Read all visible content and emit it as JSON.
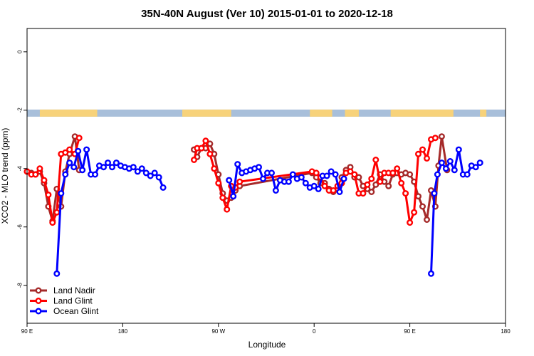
{
  "chart_data": {
    "type": "line",
    "title": "35N-40N August (Ver 10)   2015-01-01 to 2020-12-18",
    "xlabel": "Longitude",
    "ylabel": "XCO2 - MLO trend (ppm)",
    "xlim": [
      90,
      540
    ],
    "ylim": [
      -9.3,
      0.8
    ],
    "x_ticks": [
      {
        "value": 90,
        "label": "90 E"
      },
      {
        "value": 180,
        "label": "180"
      },
      {
        "value": 270,
        "label": "90 W"
      },
      {
        "value": 360,
        "label": "0"
      },
      {
        "value": 450,
        "label": "90 E"
      },
      {
        "value": 540,
        "label": "180"
      }
    ],
    "y_ticks": [
      {
        "value": 0,
        "label": "0"
      },
      {
        "value": -2,
        "label": "-2"
      },
      {
        "value": -4,
        "label": "-4"
      },
      {
        "value": -6,
        "label": "-6"
      },
      {
        "value": -8,
        "label": "-8"
      }
    ],
    "landmask": {
      "y_value": -2.1,
      "land_color": "#f7d27a",
      "ocean_color": "#a8bfda",
      "land_ranges": [
        [
          102,
          156
        ],
        [
          236,
          282
        ],
        [
          356,
          377
        ],
        [
          389,
          402
        ],
        [
          432,
          491
        ],
        [
          516,
          522
        ]
      ]
    },
    "legend_position": "bottom-left",
    "series": [
      {
        "name": "Land Nadir",
        "color": "#a52a2a",
        "x": [
          90,
          94,
          98,
          102,
          106,
          110,
          114,
          118,
          122,
          126,
          130,
          135,
          139,
          143,
          147,
          150,
          247,
          250,
          254,
          258,
          262,
          266,
          270,
          274,
          278,
          282,
          286,
          290,
          358,
          362,
          366,
          370,
          374,
          378,
          382,
          386,
          390,
          394,
          398,
          402,
          406,
          410,
          414,
          418,
          422,
          426,
          430,
          434,
          438,
          442,
          446,
          450,
          454,
          458,
          462,
          466,
          470,
          474,
          477,
          480,
          485,
          489,
          492
        ],
        "y": [
          -4.1,
          -4.15,
          -4.2,
          -4.1,
          -4.5,
          -5.3,
          -5.8,
          -4.7,
          -5.3,
          -4.1,
          -3.5,
          -2.9,
          -4.05,
          null,
          null,
          null,
          -3.35,
          -3.6,
          -3.3,
          -3.3,
          -3.15,
          -3.5,
          -4.2,
          -4.85,
          -5.1,
          -5.0,
          -4.75,
          -4.6,
          -4.15,
          -4.3,
          -4.5,
          -4.5,
          -4.7,
          -4.8,
          -4.7,
          -4.3,
          -4.05,
          -3.95,
          -4.3,
          -4.3,
          -4.6,
          -4.7,
          -4.8,
          -4.55,
          -4.2,
          -4.45,
          -4.6,
          -4.2,
          -4.15,
          -4.2,
          -4.15,
          -4.2,
          -4.45,
          -4.95,
          -5.3,
          -5.75,
          -4.75,
          -5.3,
          -3.9,
          -2.9,
          -4.05,
          null,
          null
        ]
      },
      {
        "name": "Land Glint",
        "color": "#ff0000",
        "x": [
          90,
          94,
          98,
          102,
          106,
          110,
          114,
          118,
          122,
          126,
          130,
          135,
          139,
          143,
          147,
          150,
          247,
          250,
          254,
          258,
          262,
          266,
          270,
          274,
          278,
          282,
          286,
          290,
          358,
          362,
          366,
          370,
          374,
          378,
          382,
          386,
          390,
          394,
          398,
          402,
          406,
          410,
          414,
          418,
          422,
          426,
          430,
          434,
          438,
          442,
          446,
          450,
          454,
          458,
          462,
          466,
          470,
          474,
          477,
          480,
          485,
          489,
          492
        ],
        "y": [
          -4.1,
          -4.2,
          -4.2,
          -4.0,
          -4.4,
          -4.9,
          -5.85,
          -5.5,
          -3.5,
          -3.45,
          -3.35,
          -3.5,
          -2.95,
          null,
          null,
          null,
          -3.7,
          -3.3,
          -3.3,
          -3.05,
          -3.5,
          -4.0,
          -4.5,
          -5.0,
          -5.4,
          -4.6,
          -4.65,
          -4.45,
          -4.1,
          -4.15,
          -4.3,
          -4.6,
          -4.75,
          -4.75,
          -4.6,
          -4.5,
          -4.15,
          -4.1,
          -4.2,
          -4.85,
          -4.85,
          -4.55,
          -4.35,
          -3.7,
          -4.45,
          -4.15,
          -4.15,
          -4.15,
          -4.0,
          -4.5,
          -4.85,
          -5.85,
          -5.5,
          -3.5,
          -3.35,
          -3.65,
          -3.0,
          -2.95,
          null,
          null,
          null,
          null,
          null
        ]
      },
      {
        "name": "Ocean Glint",
        "color": "#0000ff",
        "x": [
          118,
          122,
          126,
          130,
          134,
          138,
          142,
          146,
          150,
          154,
          158,
          162,
          166,
          170,
          174,
          178,
          182,
          186,
          190,
          194,
          198,
          202,
          206,
          210,
          214,
          218,
          222,
          226,
          230,
          234,
          280,
          284,
          288,
          292,
          296,
          300,
          304,
          308,
          312,
          316,
          320,
          324,
          328,
          332,
          336,
          340,
          344,
          348,
          352,
          356,
          360,
          364,
          368,
          372,
          376,
          380,
          384,
          388,
          392,
          396,
          400,
          404,
          408,
          412,
          416,
          420,
          470,
          473,
          476,
          480,
          484,
          488,
          492,
          496,
          500,
          504,
          508,
          512,
          516,
          520,
          524,
          528,
          532,
          536,
          540
        ],
        "y": [
          -7.6,
          -4.85,
          -4.2,
          -3.8,
          -3.95,
          -3.4,
          -4.05,
          -3.35,
          -4.2,
          -4.2,
          -3.9,
          -3.95,
          -3.8,
          -3.95,
          -3.8,
          -3.9,
          -3.95,
          -4.0,
          -3.95,
          -4.1,
          -4.0,
          -4.15,
          -4.25,
          -4.15,
          -4.3,
          -4.65,
          null,
          null,
          null,
          null,
          -4.4,
          -4.95,
          -3.85,
          -4.15,
          -4.1,
          -4.05,
          -4.0,
          -3.95,
          -4.35,
          -4.15,
          -4.15,
          -4.75,
          -4.4,
          -4.45,
          -4.45,
          -4.2,
          -4.35,
          -4.3,
          -4.5,
          -4.65,
          -4.6,
          -4.7,
          -4.25,
          -4.25,
          -4.1,
          -4.2,
          -4.8,
          -4.35,
          null,
          null,
          null,
          null,
          null,
          null,
          null,
          null,
          -7.6,
          -4.85,
          -4.2,
          -3.8,
          -4.0,
          -3.75,
          -4.05,
          -3.35,
          -4.2,
          -4.2,
          -3.9,
          -3.95,
          -3.8,
          null,
          null,
          null,
          null,
          null,
          null
        ]
      }
    ]
  }
}
